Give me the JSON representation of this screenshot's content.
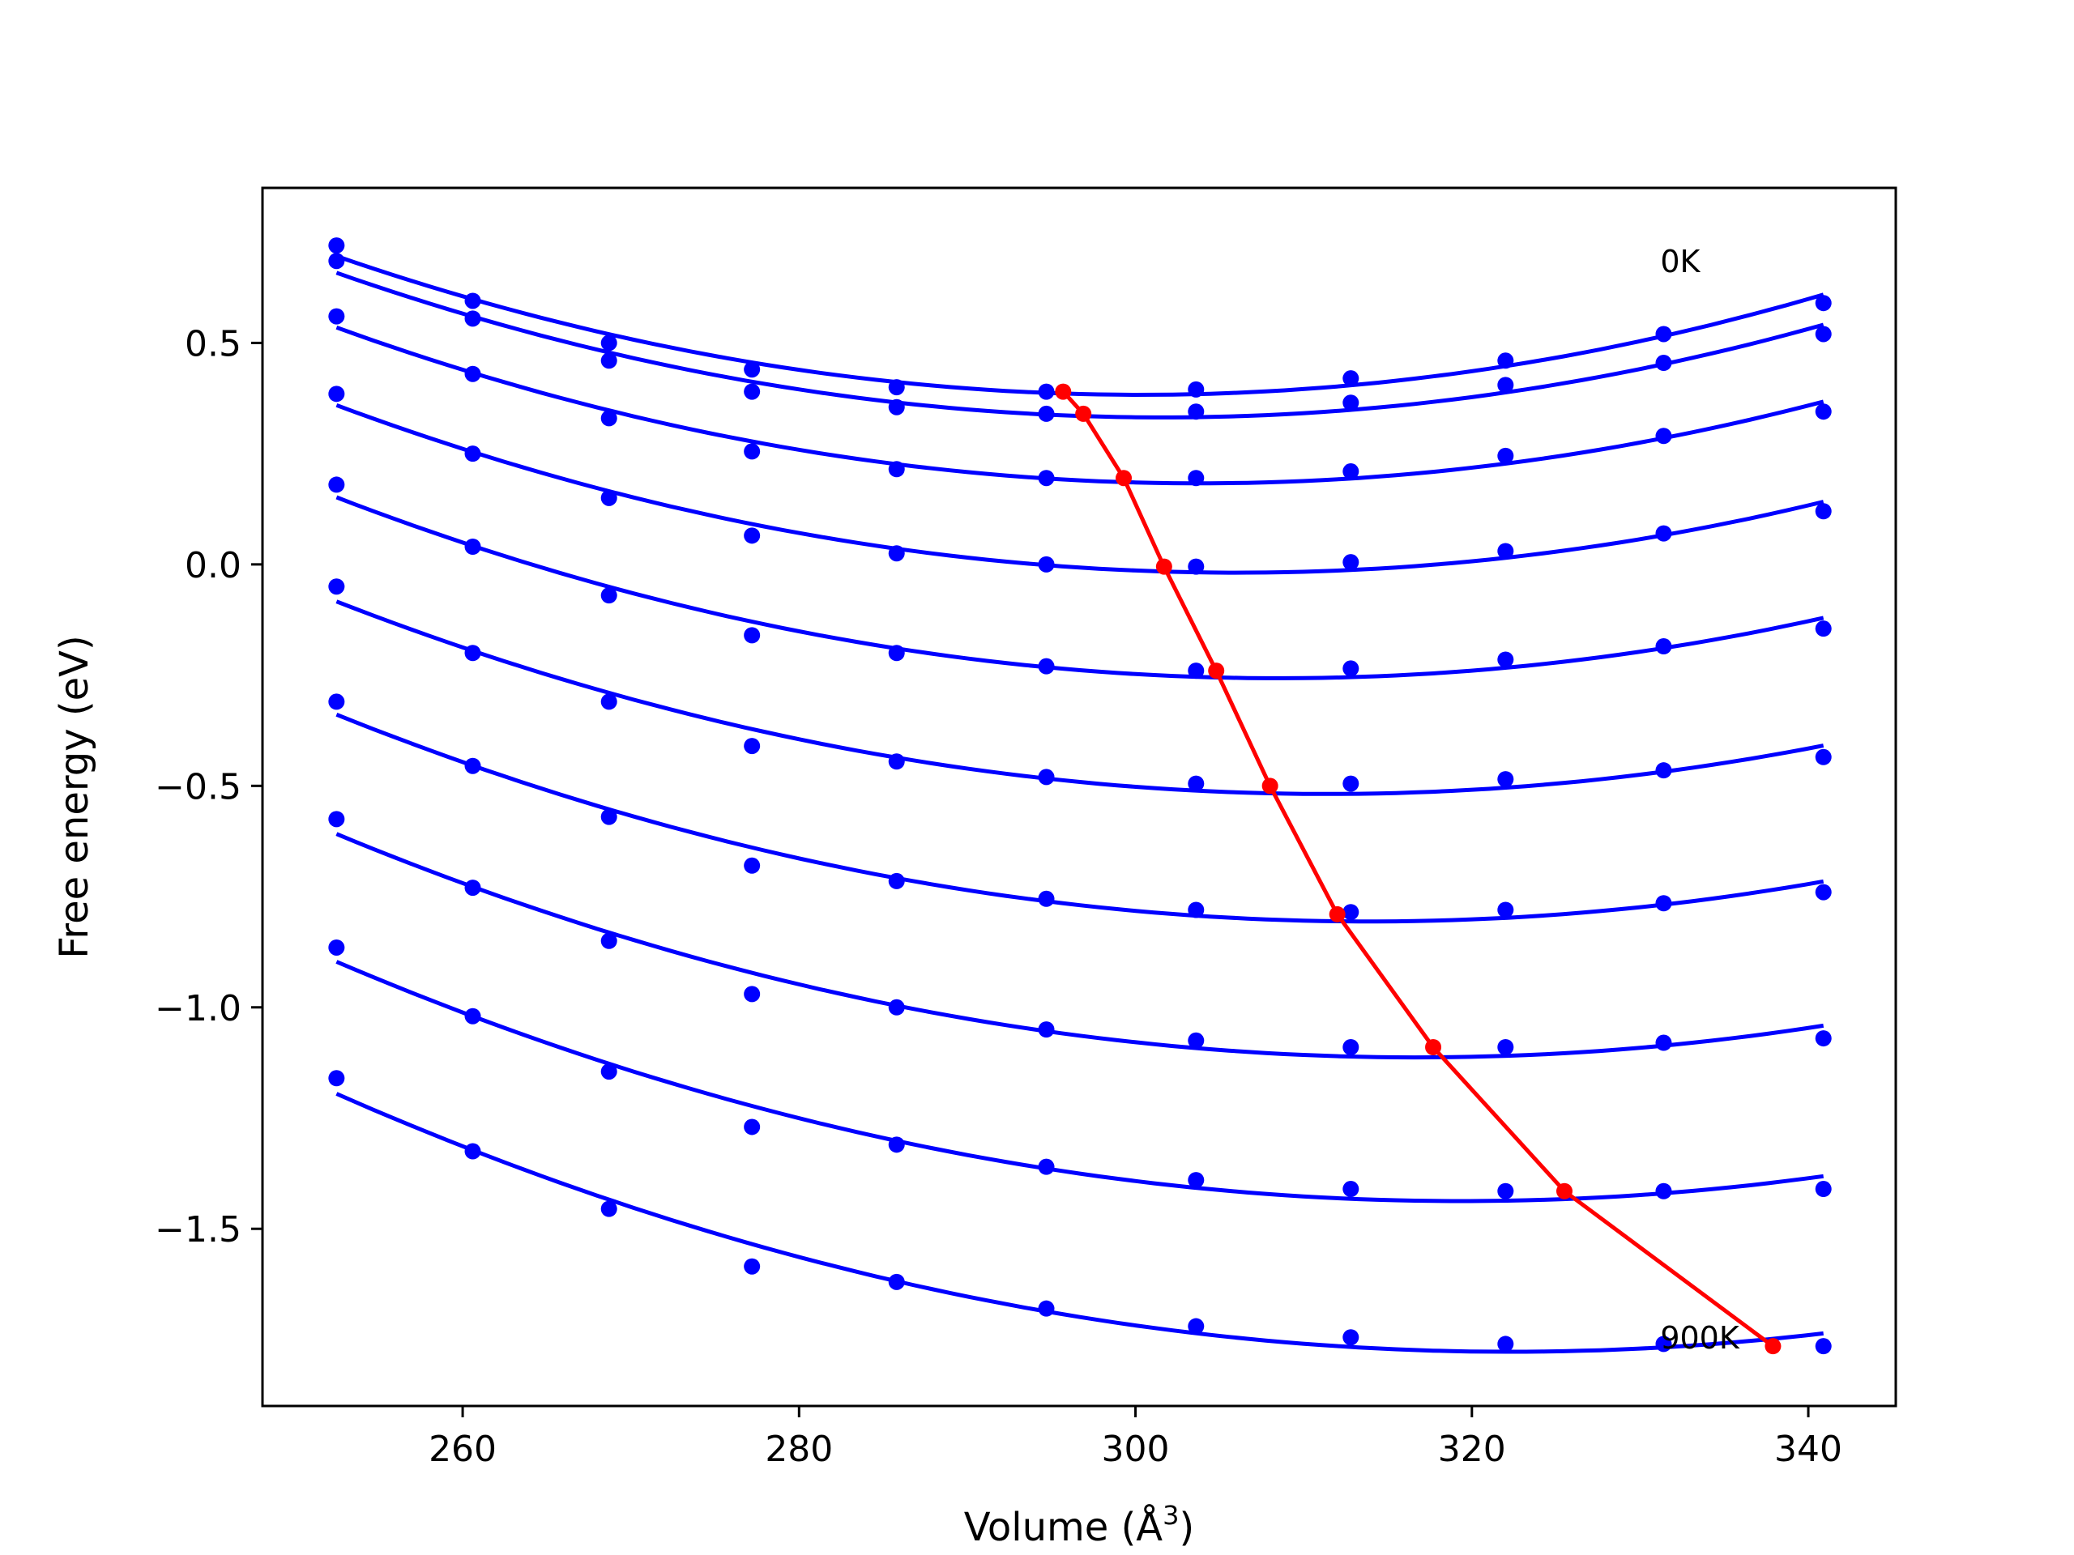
{
  "chart_data": {
    "type": "line",
    "title": "",
    "xlabel": "Volume (Å",
    "xlabel_sup": "3",
    "xlabel_close": ")",
    "ylabel": "Free energy (eV)",
    "xlim": [
      248.1,
      345.2
    ],
    "ylim": [
      -1.9,
      0.85
    ],
    "xticks": [
      260,
      280,
      300,
      320,
      340
    ],
    "xtick_labels": [
      "260",
      "280",
      "300",
      "320",
      "340"
    ],
    "yticks": [
      0.5,
      0.0,
      -0.5,
      -1.0,
      -1.5
    ],
    "ytick_labels": [
      "0.5",
      "0.0",
      "−0.5",
      "−1.0",
      "−1.5"
    ],
    "grid": false,
    "legend": "none",
    "annotations": [
      {
        "text": "0K",
        "x": 331.2,
        "y": 0.66
      },
      {
        "text": "900K",
        "x": 331.2,
        "y": -1.77
      }
    ],
    "x": [
      252.5,
      260.6,
      268.7,
      277.2,
      285.8,
      294.7,
      303.6,
      312.8,
      322.0,
      331.4,
      340.9
    ],
    "series": [
      {
        "color": "#0000ff",
        "values": [
          0.72,
          0.595,
          0.5,
          0.44,
          0.4,
          0.39,
          0.395,
          0.42,
          0.46,
          0.52,
          0.59
        ]
      },
      {
        "color": "#0000ff",
        "values": [
          0.685,
          0.555,
          0.46,
          0.39,
          0.355,
          0.34,
          0.345,
          0.365,
          0.405,
          0.455,
          0.52
        ]
      },
      {
        "color": "#0000ff",
        "values": [
          0.56,
          0.43,
          0.33,
          0.255,
          0.215,
          0.195,
          0.195,
          0.21,
          0.245,
          0.29,
          0.345
        ]
      },
      {
        "color": "#0000ff",
        "values": [
          0.385,
          0.25,
          0.15,
          0.065,
          0.025,
          0.0,
          -0.005,
          0.005,
          0.03,
          0.07,
          0.12
        ]
      },
      {
        "color": "#0000ff",
        "values": [
          0.18,
          0.04,
          -0.07,
          -0.16,
          -0.2,
          -0.23,
          -0.24,
          -0.235,
          -0.215,
          -0.185,
          -0.145
        ]
      },
      {
        "color": "#0000ff",
        "values": [
          -0.05,
          -0.2,
          -0.31,
          -0.41,
          -0.445,
          -0.48,
          -0.495,
          -0.495,
          -0.485,
          -0.465,
          -0.435
        ]
      },
      {
        "color": "#0000ff",
        "values": [
          -0.31,
          -0.455,
          -0.57,
          -0.68,
          -0.715,
          -0.755,
          -0.78,
          -0.785,
          -0.78,
          -0.765,
          -0.74
        ]
      },
      {
        "color": "#0000ff",
        "values": [
          -0.575,
          -0.73,
          -0.85,
          -0.97,
          -1.0,
          -1.05,
          -1.075,
          -1.09,
          -1.09,
          -1.08,
          -1.07
        ]
      },
      {
        "color": "#0000ff",
        "values": [
          -0.865,
          -1.02,
          -1.145,
          -1.27,
          -1.31,
          -1.36,
          -1.39,
          -1.41,
          -1.415,
          -1.415,
          -1.41
        ]
      },
      {
        "color": "#0000ff",
        "values": [
          -1.16,
          -1.325,
          -1.455,
          -1.585,
          -1.62,
          -1.68,
          -1.72,
          -1.745,
          -1.76,
          -1.76,
          -1.765
        ]
      }
    ],
    "minimum_curve": {
      "color": "#ff0000",
      "x": [
        295.7,
        296.9,
        299.3,
        301.7,
        304.8,
        308.0,
        312.0,
        317.7,
        325.5,
        337.9
      ],
      "y": [
        0.39,
        0.34,
        0.195,
        -0.005,
        -0.24,
        -0.5,
        -0.79,
        -1.09,
        -1.415,
        -1.765
      ]
    }
  }
}
